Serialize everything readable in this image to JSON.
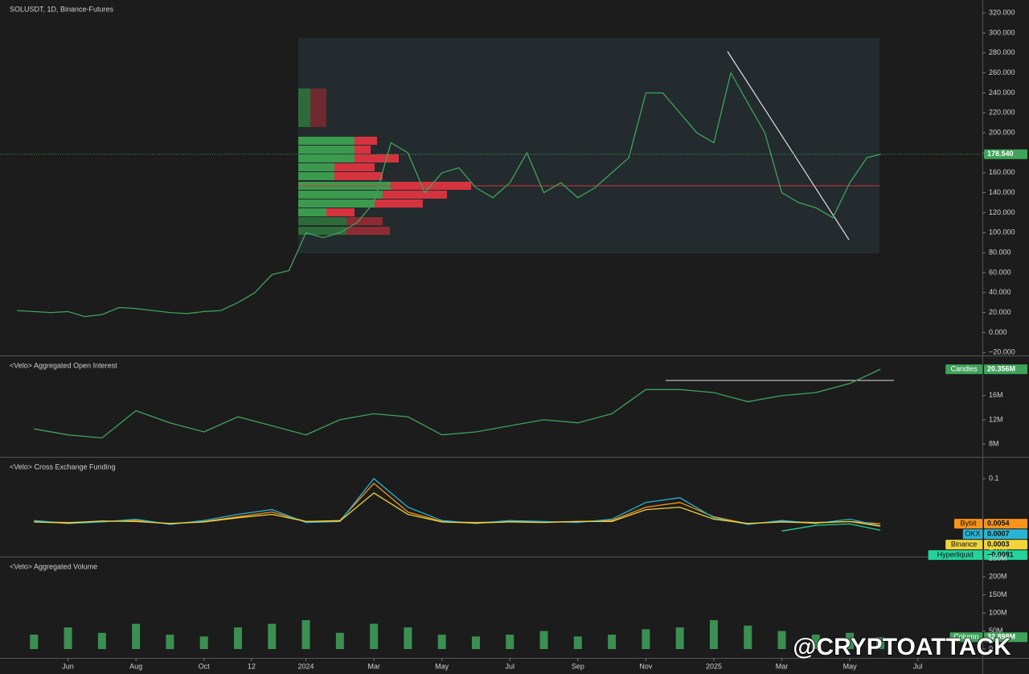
{
  "chart_data": [
    {
      "type": "line",
      "title": "SOLUSDT, 1D, Binance-Futures",
      "color": "#3fa35a",
      "x": [
        3.5,
        4,
        4.5,
        5,
        5.5,
        6,
        6.5,
        7,
        7.5,
        8,
        8.5,
        9,
        9.5,
        10,
        10.5,
        11,
        11.5,
        12,
        12.5,
        13,
        13.5,
        14,
        14.5,
        15,
        15.5,
        16,
        16.5,
        17,
        17.5,
        18,
        18.5,
        19,
        19.5,
        20,
        20.5,
        21,
        21.5,
        22,
        22.5,
        23,
        23.5,
        24,
        24.5,
        25,
        25.5,
        26,
        26.5,
        27,
        27.5,
        28,
        28.5,
        28.9
      ],
      "values": [
        22,
        21,
        20,
        21,
        16,
        18,
        25,
        24,
        22,
        20,
        19,
        21,
        22,
        30,
        40,
        58,
        62,
        100,
        95,
        100,
        110,
        130,
        190,
        180,
        140,
        160,
        165,
        145,
        135,
        150,
        180,
        140,
        150,
        135,
        145,
        160,
        175,
        240,
        240,
        220,
        200,
        190,
        260,
        230,
        200,
        140,
        130,
        125,
        115,
        150,
        175,
        178.54
      ],
      "value_labels": [
        null,
        null,
        null,
        null,
        null,
        null,
        null,
        null,
        null,
        null,
        null,
        null,
        null,
        null,
        null,
        null,
        null,
        null,
        null,
        null,
        null,
        null,
        null,
        null,
        null,
        null,
        null,
        null,
        null,
        null,
        null,
        null,
        null,
        null,
        null,
        null,
        null,
        null,
        null,
        null,
        null,
        null,
        null,
        null,
        null,
        null,
        null,
        null,
        null,
        null,
        null,
        "178.540"
      ],
      "value_color": "#3fa35a",
      "xlim": [
        3,
        31.9
      ],
      "xticks": [
        {
          "value": 5,
          "label": "Jun"
        },
        {
          "value": 7,
          "label": "Aug"
        },
        {
          "value": 9,
          "label": "Oct"
        },
        {
          "value": 10.4,
          "label": "12"
        },
        {
          "value": 12,
          "label": "2024"
        },
        {
          "value": 14,
          "label": "Mar"
        },
        {
          "value": 16,
          "label": "May"
        },
        {
          "value": 18,
          "label": "Jul"
        },
        {
          "value": 20,
          "label": "Sep"
        },
        {
          "value": 22,
          "label": "Nov"
        },
        {
          "value": 24,
          "label": "2025"
        },
        {
          "value": 26,
          "label": "Mar"
        },
        {
          "value": 28,
          "label": "May"
        },
        {
          "value": 30,
          "label": "Jul"
        }
      ],
      "ylim": [
        -23,
        333
      ],
      "yticks": [
        {
          "value": 320,
          "label": "320.000"
        },
        {
          "value": 300,
          "label": "300.000"
        },
        {
          "value": 280,
          "label": "280.000"
        },
        {
          "value": 260,
          "label": "260.000"
        },
        {
          "value": 240,
          "label": "240.000"
        },
        {
          "value": 220,
          "label": "220.000"
        },
        {
          "value": 200,
          "label": "200.000"
        },
        {
          "value": 180,
          "label": "180.000"
        },
        {
          "value": 160,
          "label": "160.000"
        },
        {
          "value": 140,
          "label": "140.000"
        },
        {
          "value": 120,
          "label": "120.000"
        },
        {
          "value": 100,
          "label": "100.000"
        },
        {
          "value": 80,
          "label": "80.000"
        },
        {
          "value": 60,
          "label": "60.000"
        },
        {
          "value": 40,
          "label": "40.000"
        },
        {
          "value": 20,
          "label": "20.000"
        },
        {
          "value": 0,
          "label": "0.000"
        },
        {
          "value": -20,
          "label": "−20.000"
        }
      ]
    },
    {
      "type": "line",
      "title": "<Velo> Aggregated Open Interest",
      "xlim": [
        3,
        31.9
      ],
      "x": [
        4,
        5,
        6,
        7,
        8,
        9,
        10,
        11,
        12,
        13,
        14,
        15,
        16,
        17,
        18,
        19,
        20,
        21,
        22,
        23,
        24,
        25,
        26,
        27,
        28,
        28.9
      ],
      "series": [
        {
          "name": "Candles",
          "color": "#3fa35a",
          "values": [
            10500000,
            9500000,
            9000000,
            13500000,
            11500000,
            10000000,
            12500000,
            11000000,
            9500000,
            12000000,
            13000000,
            12500000,
            9500000,
            10000000,
            11000000,
            12000000,
            11500000,
            13000000,
            17000000,
            17000000,
            16500000,
            15000000,
            16000000,
            16500000,
            18000000,
            20356000
          ],
          "value_labels": [
            null,
            null,
            null,
            null,
            null,
            null,
            null,
            null,
            null,
            null,
            null,
            null,
            null,
            null,
            null,
            null,
            null,
            null,
            null,
            null,
            null,
            null,
            null,
            null,
            null,
            "20.356M"
          ]
        }
      ],
      "ylim": [
        5870000,
        22500000
      ],
      "yticks": [
        {
          "value": 16000000,
          "label": "16M"
        },
        {
          "value": 12000000,
          "label": "12M"
        },
        {
          "value": 8000000,
          "label": "8M"
        }
      ]
    },
    {
      "type": "line",
      "title": "<Velo> Cross Exchange Funding",
      "xlim": [
        3,
        31.9
      ],
      "x": [
        4,
        5,
        6,
        7,
        8,
        9,
        10,
        11,
        12,
        13,
        14,
        15,
        16,
        17,
        18,
        19,
        20,
        21,
        22,
        23,
        24,
        25,
        26,
        27,
        28,
        28.9
      ],
      "series": [
        {
          "name": "Bybit",
          "color": "#f7931a",
          "values": [
            0.01,
            0.008,
            0.01,
            0.012,
            0.005,
            0.01,
            0.02,
            0.03,
            0.01,
            0.012,
            0.09,
            0.03,
            0.01,
            0.008,
            0.01,
            0.009,
            0.01,
            0.012,
            0.04,
            0.05,
            0.02,
            0.005,
            0.01,
            0.008,
            0.01,
            0.0054
          ]
        },
        {
          "name": "OKX",
          "color": "#26b5d4",
          "values": [
            0.012,
            0.006,
            0.009,
            0.015,
            0.004,
            0.012,
            0.025,
            0.035,
            0.008,
            0.01,
            0.1,
            0.04,
            0.012,
            0.006,
            0.012,
            0.01,
            0.008,
            0.015,
            0.05,
            0.06,
            0.018,
            0.004,
            0.012,
            0.006,
            0.015,
            0.0007
          ]
        },
        {
          "name": "Binance",
          "color": "#f0d43a",
          "values": [
            0.009,
            0.007,
            0.011,
            0.01,
            0.006,
            0.009,
            0.018,
            0.025,
            0.01,
            0.011,
            0.07,
            0.025,
            0.009,
            0.007,
            0.009,
            0.008,
            0.01,
            0.01,
            0.035,
            0.04,
            0.015,
            0.006,
            0.009,
            0.007,
            0.01,
            0.0003
          ]
        },
        {
          "name": "Hyperliquid",
          "color": "#22d39a",
          "values": [
            null,
            null,
            null,
            null,
            null,
            null,
            null,
            null,
            null,
            null,
            null,
            null,
            null,
            null,
            null,
            null,
            null,
            null,
            null,
            null,
            null,
            null,
            -0.01,
            0.002,
            0.005,
            -0.0081
          ],
          "value_labels": [
            null,
            null,
            null,
            null,
            null,
            null,
            null,
            null,
            null,
            null,
            null,
            null,
            null,
            null,
            null,
            null,
            null,
            null,
            null,
            null,
            null,
            null,
            null,
            null,
            null,
            "−0.0081"
          ]
        }
      ],
      "ylim": [
        -0.0635,
        0.144
      ],
      "yticks": [
        0.1,
        {
          "value": -0.05,
          "label": "−0.05"
        }
      ]
    },
    {
      "type": "bar",
      "title": "<Velo> Aggregated Volume",
      "xlim": [
        3,
        31.9
      ],
      "x": [
        4,
        5,
        6,
        7,
        8,
        9,
        10,
        11,
        12,
        13,
        14,
        15,
        16,
        17,
        18,
        19,
        20,
        21,
        22,
        23,
        24,
        25,
        26,
        27,
        28,
        28.9
      ],
      "series": [
        {
          "name": "Column",
          "color": "#3fa35a",
          "values": [
            40000000,
            60000000,
            45000000,
            70000000,
            40000000,
            35000000,
            60000000,
            70000000,
            80000000,
            45000000,
            70000000,
            60000000,
            40000000,
            35000000,
            40000000,
            50000000,
            35000000,
            40000000,
            55000000,
            60000000,
            80000000,
            65000000,
            50000000,
            40000000,
            45000000,
            32898000
          ],
          "value_labels": [
            null,
            null,
            null,
            null,
            null,
            null,
            null,
            null,
            null,
            null,
            null,
            null,
            null,
            null,
            null,
            null,
            null,
            null,
            null,
            null,
            null,
            null,
            null,
            null,
            null,
            "32.898M"
          ]
        }
      ],
      "ylim": [
        -24500000,
        254000000
      ],
      "yticks": [
        {
          "value": 250000000,
          "label": "250M"
        },
        {
          "value": 200000000,
          "label": "200M"
        },
        {
          "value": 150000000,
          "label": "150M"
        },
        {
          "value": 100000000,
          "label": "100M"
        },
        {
          "value": 50000000,
          "label": "50M"
        },
        0
      ]
    }
  ],
  "watermark": "@CRYPTOATTACK"
}
